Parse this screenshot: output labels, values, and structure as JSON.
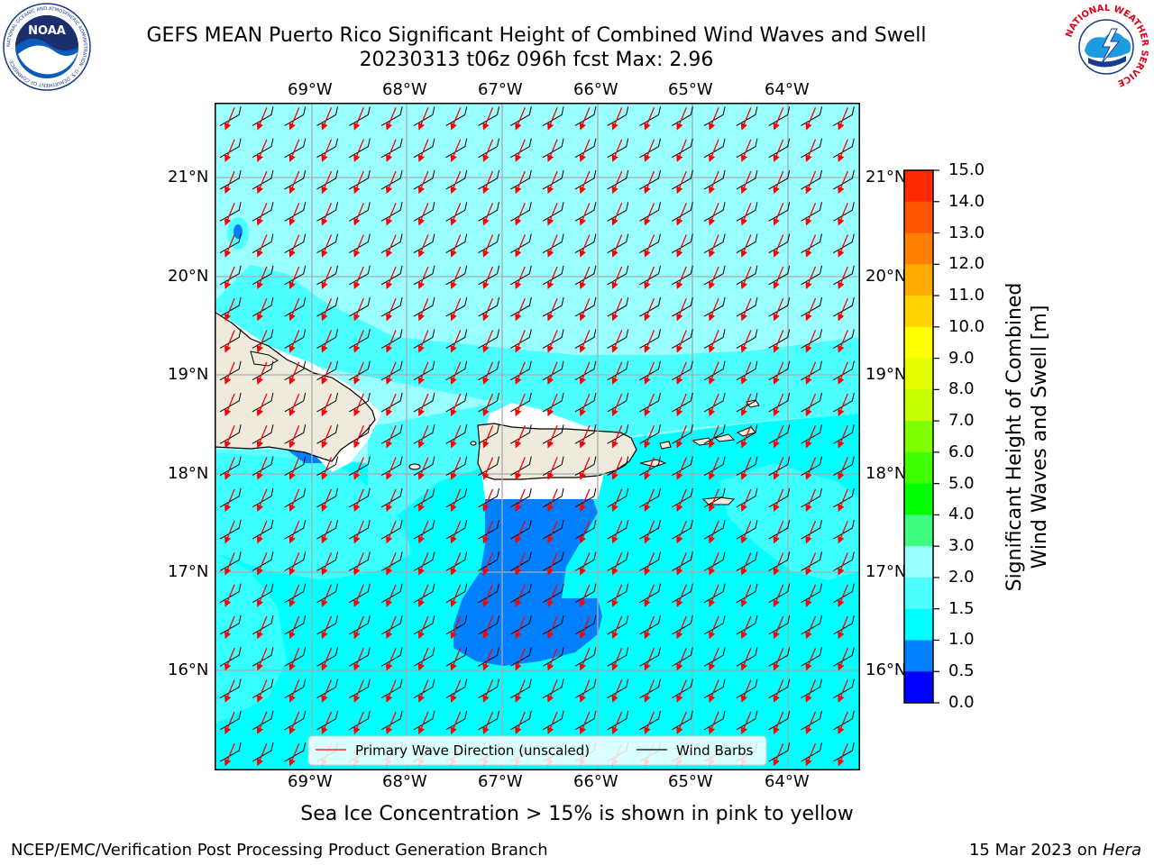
{
  "header": {
    "title_line1": "GEFS MEAN Puerto Rico Significant Height of Combined Wind Waves and Swell",
    "title_line2": "20230313 t06z 096h fcst   Max: 2.96"
  },
  "logos": {
    "left": "NOAA",
    "left_ring_text": "NATIONAL OCEANIC AND ATMOSPHERIC ADMINISTRATION · U.S. DEPARTMENT OF COMMERCE",
    "right_ring_text": "NATIONAL WEATHER SERVICE"
  },
  "map": {
    "lon_labels": [
      "69°W",
      "68°W",
      "67°W",
      "66°W",
      "65°W",
      "64°W"
    ],
    "lat_labels": [
      "21°N",
      "20°N",
      "19°N",
      "18°N",
      "17°N",
      "16°N"
    ],
    "legend": {
      "wave_dir": "Primary Wave Direction (unscaled)",
      "wind_barbs": "Wind Barbs"
    },
    "colors": {
      "water_main": "#00ffff",
      "water_light": "#4dffff",
      "water_pale": "#99ffff",
      "low_wave": "#0080ff",
      "land": "#efebdc",
      "arrows": "#ff0000",
      "barbs": "#000000"
    }
  },
  "colorbar": {
    "label_line1": "Significant Height of Combined",
    "label_line2": "Wind Waves and Swell [m]",
    "ticks": [
      "15.0",
      "14.0",
      "13.0",
      "12.0",
      "11.0",
      "10.0",
      "9.0",
      "8.0",
      "7.0",
      "6.0",
      "5.0",
      "4.0",
      "3.0",
      "2.0",
      "1.5",
      "1.0",
      "0.5",
      "0.0"
    ],
    "colors": [
      "#ff0000",
      "#ff2a00",
      "#ff5500",
      "#ff8000",
      "#ffaa00",
      "#ffd400",
      "#ffff00",
      "#e4ff00",
      "#c8ff00",
      "#80ff00",
      "#40ff00",
      "#00ff00",
      "#40ff80",
      "#99ffff",
      "#4dffff",
      "#00ffff",
      "#0080ff",
      "#0000ff"
    ]
  },
  "subtitle": "Sea Ice Concentration > 15% is shown in pink to yellow",
  "footer": {
    "left": "NCEP/EMC/Verification Post Processing Product Generation Branch",
    "right_date": "15 Mar 2023 on ",
    "right_host": "Hera"
  }
}
